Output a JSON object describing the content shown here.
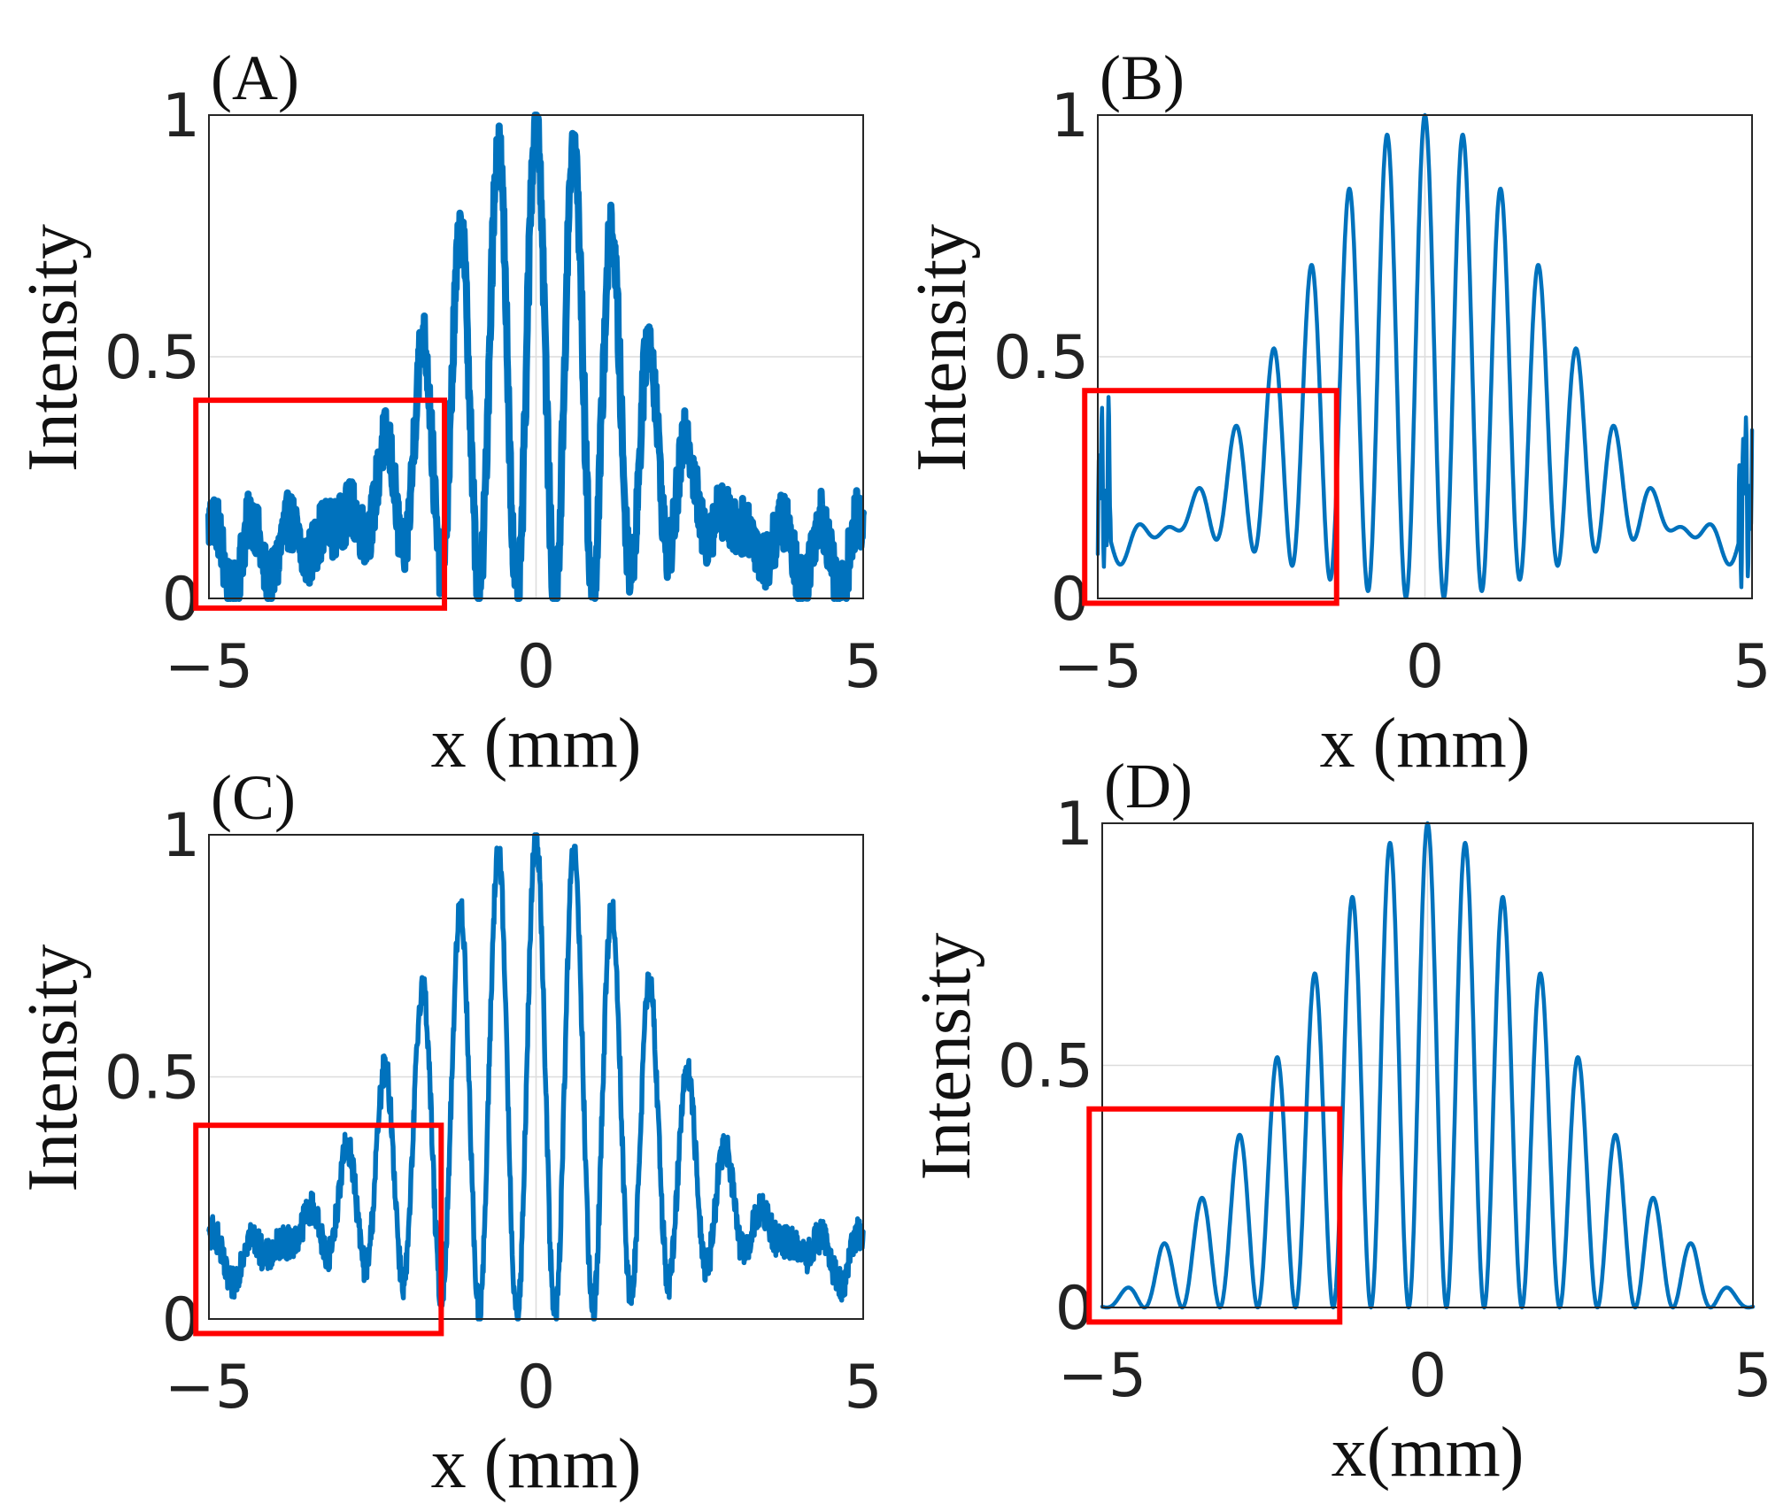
{
  "colors": {
    "series": "#0072BD",
    "box": "#ff0000",
    "grid": "#dcdcdc"
  },
  "chart_data": [
    {
      "panel": "(A)",
      "type": "line",
      "title": "",
      "xlabel": "x (mm)",
      "ylabel": "Intensity",
      "xlim": [
        -5,
        5
      ],
      "ylim": [
        0,
        1
      ],
      "xticks": [
        "−5",
        "0",
        "5"
      ],
      "yticks": [
        "0",
        "0.5",
        "1"
      ],
      "grid": "y-only",
      "series": [
        {
          "name": "intensity",
          "style": "noisy-thick",
          "fringe_period_mm": 0.58,
          "envelope_width_mm": 2.2,
          "edge_level": 0.17,
          "noise": 0.06
        }
      ],
      "highlight_region": {
        "x": [
          -5.2,
          -1.4
        ],
        "y": [
          -0.02,
          0.41
        ]
      }
    },
    {
      "panel": "(B)",
      "type": "line",
      "title": "",
      "xlabel": "x (mm)",
      "ylabel": "Intensity",
      "xlim": [
        -5,
        5
      ],
      "ylim": [
        0,
        1
      ],
      "xticks": [
        "−5",
        "0",
        "5"
      ],
      "yticks": [
        "0",
        "0.5",
        "1"
      ],
      "grid": "y-only",
      "series": [
        {
          "name": "intensity",
          "style": "smooth-edge-ringing",
          "fringe_period_mm": 0.58,
          "envelope_width_mm": 2.85,
          "edge_level": 0.17,
          "noise": 0
        }
      ],
      "highlight_region": {
        "x": [
          -5.2,
          -1.35
        ],
        "y": [
          -0.01,
          0.43
        ]
      }
    },
    {
      "panel": "(C)",
      "type": "line",
      "title": "",
      "xlabel": "x (mm)",
      "ylabel": "Intensity",
      "xlim": [
        -5,
        5
      ],
      "ylim": [
        0,
        1
      ],
      "xticks": [
        "−5",
        "0",
        "5"
      ],
      "yticks": [
        "0",
        "0.5",
        "1"
      ],
      "grid": "y-only",
      "series": [
        {
          "name": "intensity",
          "style": "noisy-thin",
          "fringe_period_mm": 0.58,
          "envelope_width_mm": 2.85,
          "edge_level": 0.19,
          "noise": 0.035
        }
      ],
      "highlight_region": {
        "x": [
          -5.2,
          -1.45
        ],
        "y": [
          -0.03,
          0.4
        ]
      }
    },
    {
      "panel": "(D)",
      "type": "line",
      "title": "",
      "xlabel": "x(mm)",
      "ylabel": "Intensity",
      "xlim": [
        -5,
        5
      ],
      "ylim": [
        0,
        1
      ],
      "xticks": [
        "−5",
        "0",
        "5"
      ],
      "yticks": [
        "0",
        "0.5",
        "1"
      ],
      "grid": "y-only",
      "series": [
        {
          "name": "intensity",
          "style": "smooth-clean",
          "fringe_period_mm": 0.58,
          "envelope_width_mm": 2.85,
          "edge_level": 0.0,
          "noise": 0
        }
      ],
      "highlight_region": {
        "x": [
          -5.2,
          -1.35
        ],
        "y": [
          -0.03,
          0.41
        ]
      }
    }
  ]
}
